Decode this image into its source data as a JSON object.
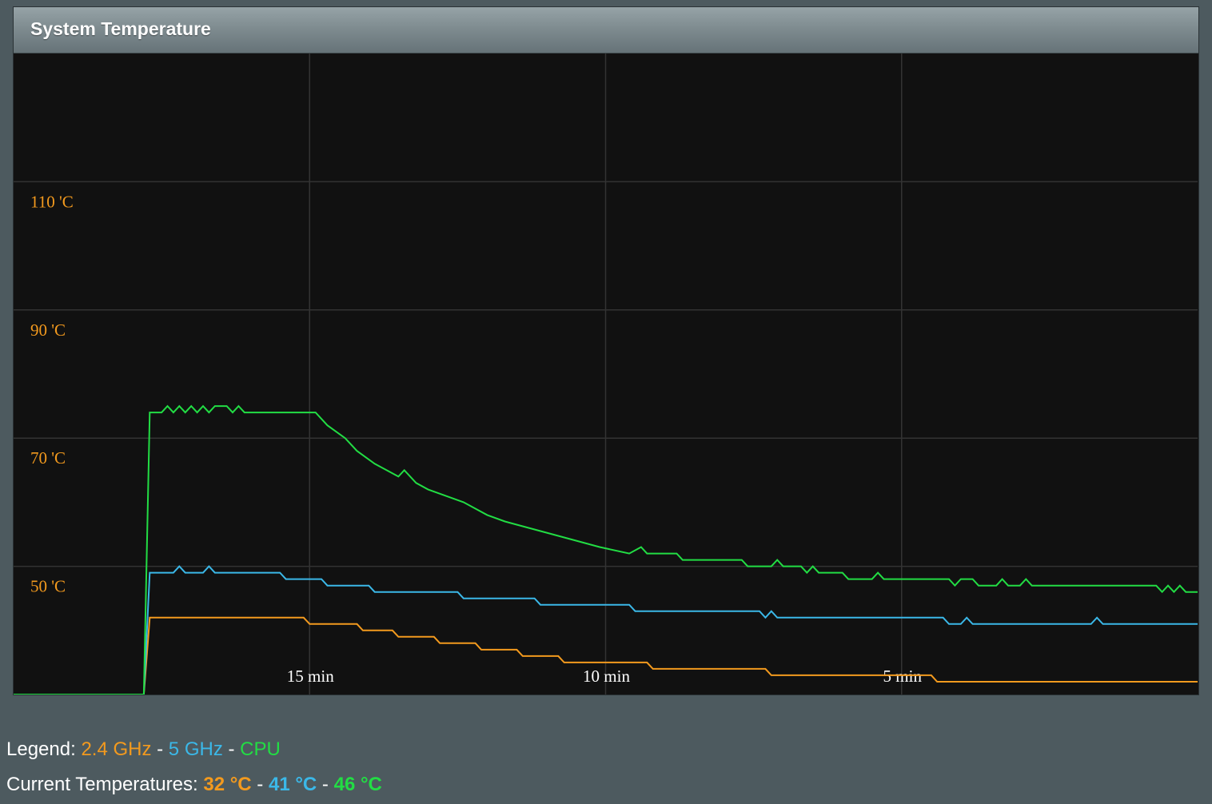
{
  "title": "System Temperature",
  "colors": {
    "ghz24": "#f39a1e",
    "ghz5": "#3bb8e8",
    "cpu": "#22dd44",
    "ylabel": "#f39a1e",
    "xlabel": "#ffffff",
    "grid": "#333333"
  },
  "chart_data": {
    "type": "line",
    "title": "",
    "xlabel": "",
    "ylabel": "",
    "x_unit": "minutes ago",
    "xlim": [
      20,
      0
    ],
    "ylim": [
      30,
      130
    ],
    "grid": true,
    "y_ticks": [
      {
        "value": 110,
        "label": "110 'C"
      },
      {
        "value": 90,
        "label": "90 'C"
      },
      {
        "value": 70,
        "label": "70 'C"
      },
      {
        "value": 50,
        "label": "50 'C"
      }
    ],
    "x_ticks": [
      {
        "value": 15,
        "label": "15 min"
      },
      {
        "value": 10,
        "label": "10 min"
      },
      {
        "value": 5,
        "label": "5 min"
      }
    ],
    "series": [
      {
        "name": "2.4 GHz",
        "color": "#f39a1e",
        "points": [
          [
            20,
            30
          ],
          [
            17.8,
            30
          ],
          [
            17.7,
            42
          ],
          [
            15.1,
            42
          ],
          [
            15.0,
            41
          ],
          [
            14.2,
            41
          ],
          [
            14.1,
            40
          ],
          [
            13.6,
            40
          ],
          [
            13.5,
            39
          ],
          [
            12.9,
            39
          ],
          [
            12.8,
            38
          ],
          [
            12.2,
            38
          ],
          [
            12.1,
            37
          ],
          [
            11.5,
            37
          ],
          [
            11.4,
            36
          ],
          [
            10.8,
            36
          ],
          [
            10.7,
            35
          ],
          [
            9.3,
            35
          ],
          [
            9.2,
            34
          ],
          [
            7.3,
            34
          ],
          [
            7.2,
            33
          ],
          [
            4.5,
            33
          ],
          [
            4.4,
            32
          ],
          [
            0,
            32
          ]
        ]
      },
      {
        "name": "5 GHz",
        "color": "#3bb8e8",
        "points": [
          [
            20,
            30
          ],
          [
            17.8,
            30
          ],
          [
            17.7,
            49
          ],
          [
            17.3,
            49
          ],
          [
            17.2,
            50
          ],
          [
            17.1,
            49
          ],
          [
            16.8,
            49
          ],
          [
            16.7,
            50
          ],
          [
            16.6,
            49
          ],
          [
            15.5,
            49
          ],
          [
            15.4,
            48
          ],
          [
            14.8,
            48
          ],
          [
            14.7,
            47
          ],
          [
            14.0,
            47
          ],
          [
            13.9,
            46
          ],
          [
            12.5,
            46
          ],
          [
            12.4,
            45
          ],
          [
            11.2,
            45
          ],
          [
            11.1,
            44
          ],
          [
            9.6,
            44
          ],
          [
            9.5,
            43
          ],
          [
            7.4,
            43
          ],
          [
            7.3,
            42
          ],
          [
            7.2,
            43
          ],
          [
            7.1,
            42
          ],
          [
            5.0,
            42
          ],
          [
            4.9,
            42
          ],
          [
            4.3,
            42
          ],
          [
            4.2,
            41
          ],
          [
            4.0,
            41
          ],
          [
            3.9,
            42
          ],
          [
            3.8,
            41
          ],
          [
            1.8,
            41
          ],
          [
            1.7,
            42
          ],
          [
            1.6,
            41
          ],
          [
            0,
            41
          ]
        ]
      },
      {
        "name": "CPU",
        "color": "#22dd44",
        "points": [
          [
            20,
            30
          ],
          [
            17.8,
            30
          ],
          [
            17.7,
            74
          ],
          [
            17.5,
            74
          ],
          [
            17.4,
            75
          ],
          [
            17.3,
            74
          ],
          [
            17.2,
            75
          ],
          [
            17.1,
            74
          ],
          [
            17.0,
            75
          ],
          [
            16.9,
            74
          ],
          [
            16.8,
            75
          ],
          [
            16.7,
            74
          ],
          [
            16.6,
            75
          ],
          [
            16.4,
            75
          ],
          [
            16.3,
            74
          ],
          [
            16.2,
            75
          ],
          [
            16.1,
            74
          ],
          [
            14.9,
            74
          ],
          [
            14.7,
            72
          ],
          [
            14.4,
            70
          ],
          [
            14.2,
            68
          ],
          [
            13.9,
            66
          ],
          [
            13.7,
            65
          ],
          [
            13.5,
            64
          ],
          [
            13.4,
            65
          ],
          [
            13.2,
            63
          ],
          [
            13.0,
            62
          ],
          [
            12.7,
            61
          ],
          [
            12.4,
            60
          ],
          [
            12.0,
            58
          ],
          [
            11.7,
            57
          ],
          [
            11.3,
            56
          ],
          [
            10.9,
            55
          ],
          [
            10.5,
            54
          ],
          [
            10.1,
            53
          ],
          [
            9.6,
            52
          ],
          [
            9.4,
            53
          ],
          [
            9.3,
            52
          ],
          [
            8.8,
            52
          ],
          [
            8.7,
            51
          ],
          [
            7.7,
            51
          ],
          [
            7.6,
            50
          ],
          [
            7.2,
            50
          ],
          [
            7.1,
            51
          ],
          [
            7.0,
            50
          ],
          [
            6.7,
            50
          ],
          [
            6.6,
            49
          ],
          [
            6.5,
            50
          ],
          [
            6.4,
            49
          ],
          [
            6.0,
            49
          ],
          [
            5.9,
            48
          ],
          [
            5.5,
            48
          ],
          [
            5.4,
            49
          ],
          [
            5.3,
            48
          ],
          [
            4.2,
            48
          ],
          [
            4.1,
            47
          ],
          [
            4.0,
            48
          ],
          [
            3.8,
            48
          ],
          [
            3.7,
            47
          ],
          [
            3.4,
            47
          ],
          [
            3.3,
            48
          ],
          [
            3.2,
            47
          ],
          [
            3.0,
            47
          ],
          [
            2.9,
            48
          ],
          [
            2.8,
            47
          ],
          [
            0.7,
            47
          ],
          [
            0.6,
            46
          ],
          [
            0.5,
            47
          ],
          [
            0.4,
            46
          ],
          [
            0.3,
            47
          ],
          [
            0.2,
            46
          ],
          [
            0,
            46
          ]
        ]
      }
    ]
  },
  "legend": {
    "label": "Legend:",
    "sep": " - ",
    "items": [
      "2.4 GHz",
      "5 GHz",
      "CPU"
    ]
  },
  "current": {
    "label": "Current Temperatures:",
    "sep": " - ",
    "values": [
      "32 °C",
      "41 °C",
      "46 °C"
    ]
  }
}
